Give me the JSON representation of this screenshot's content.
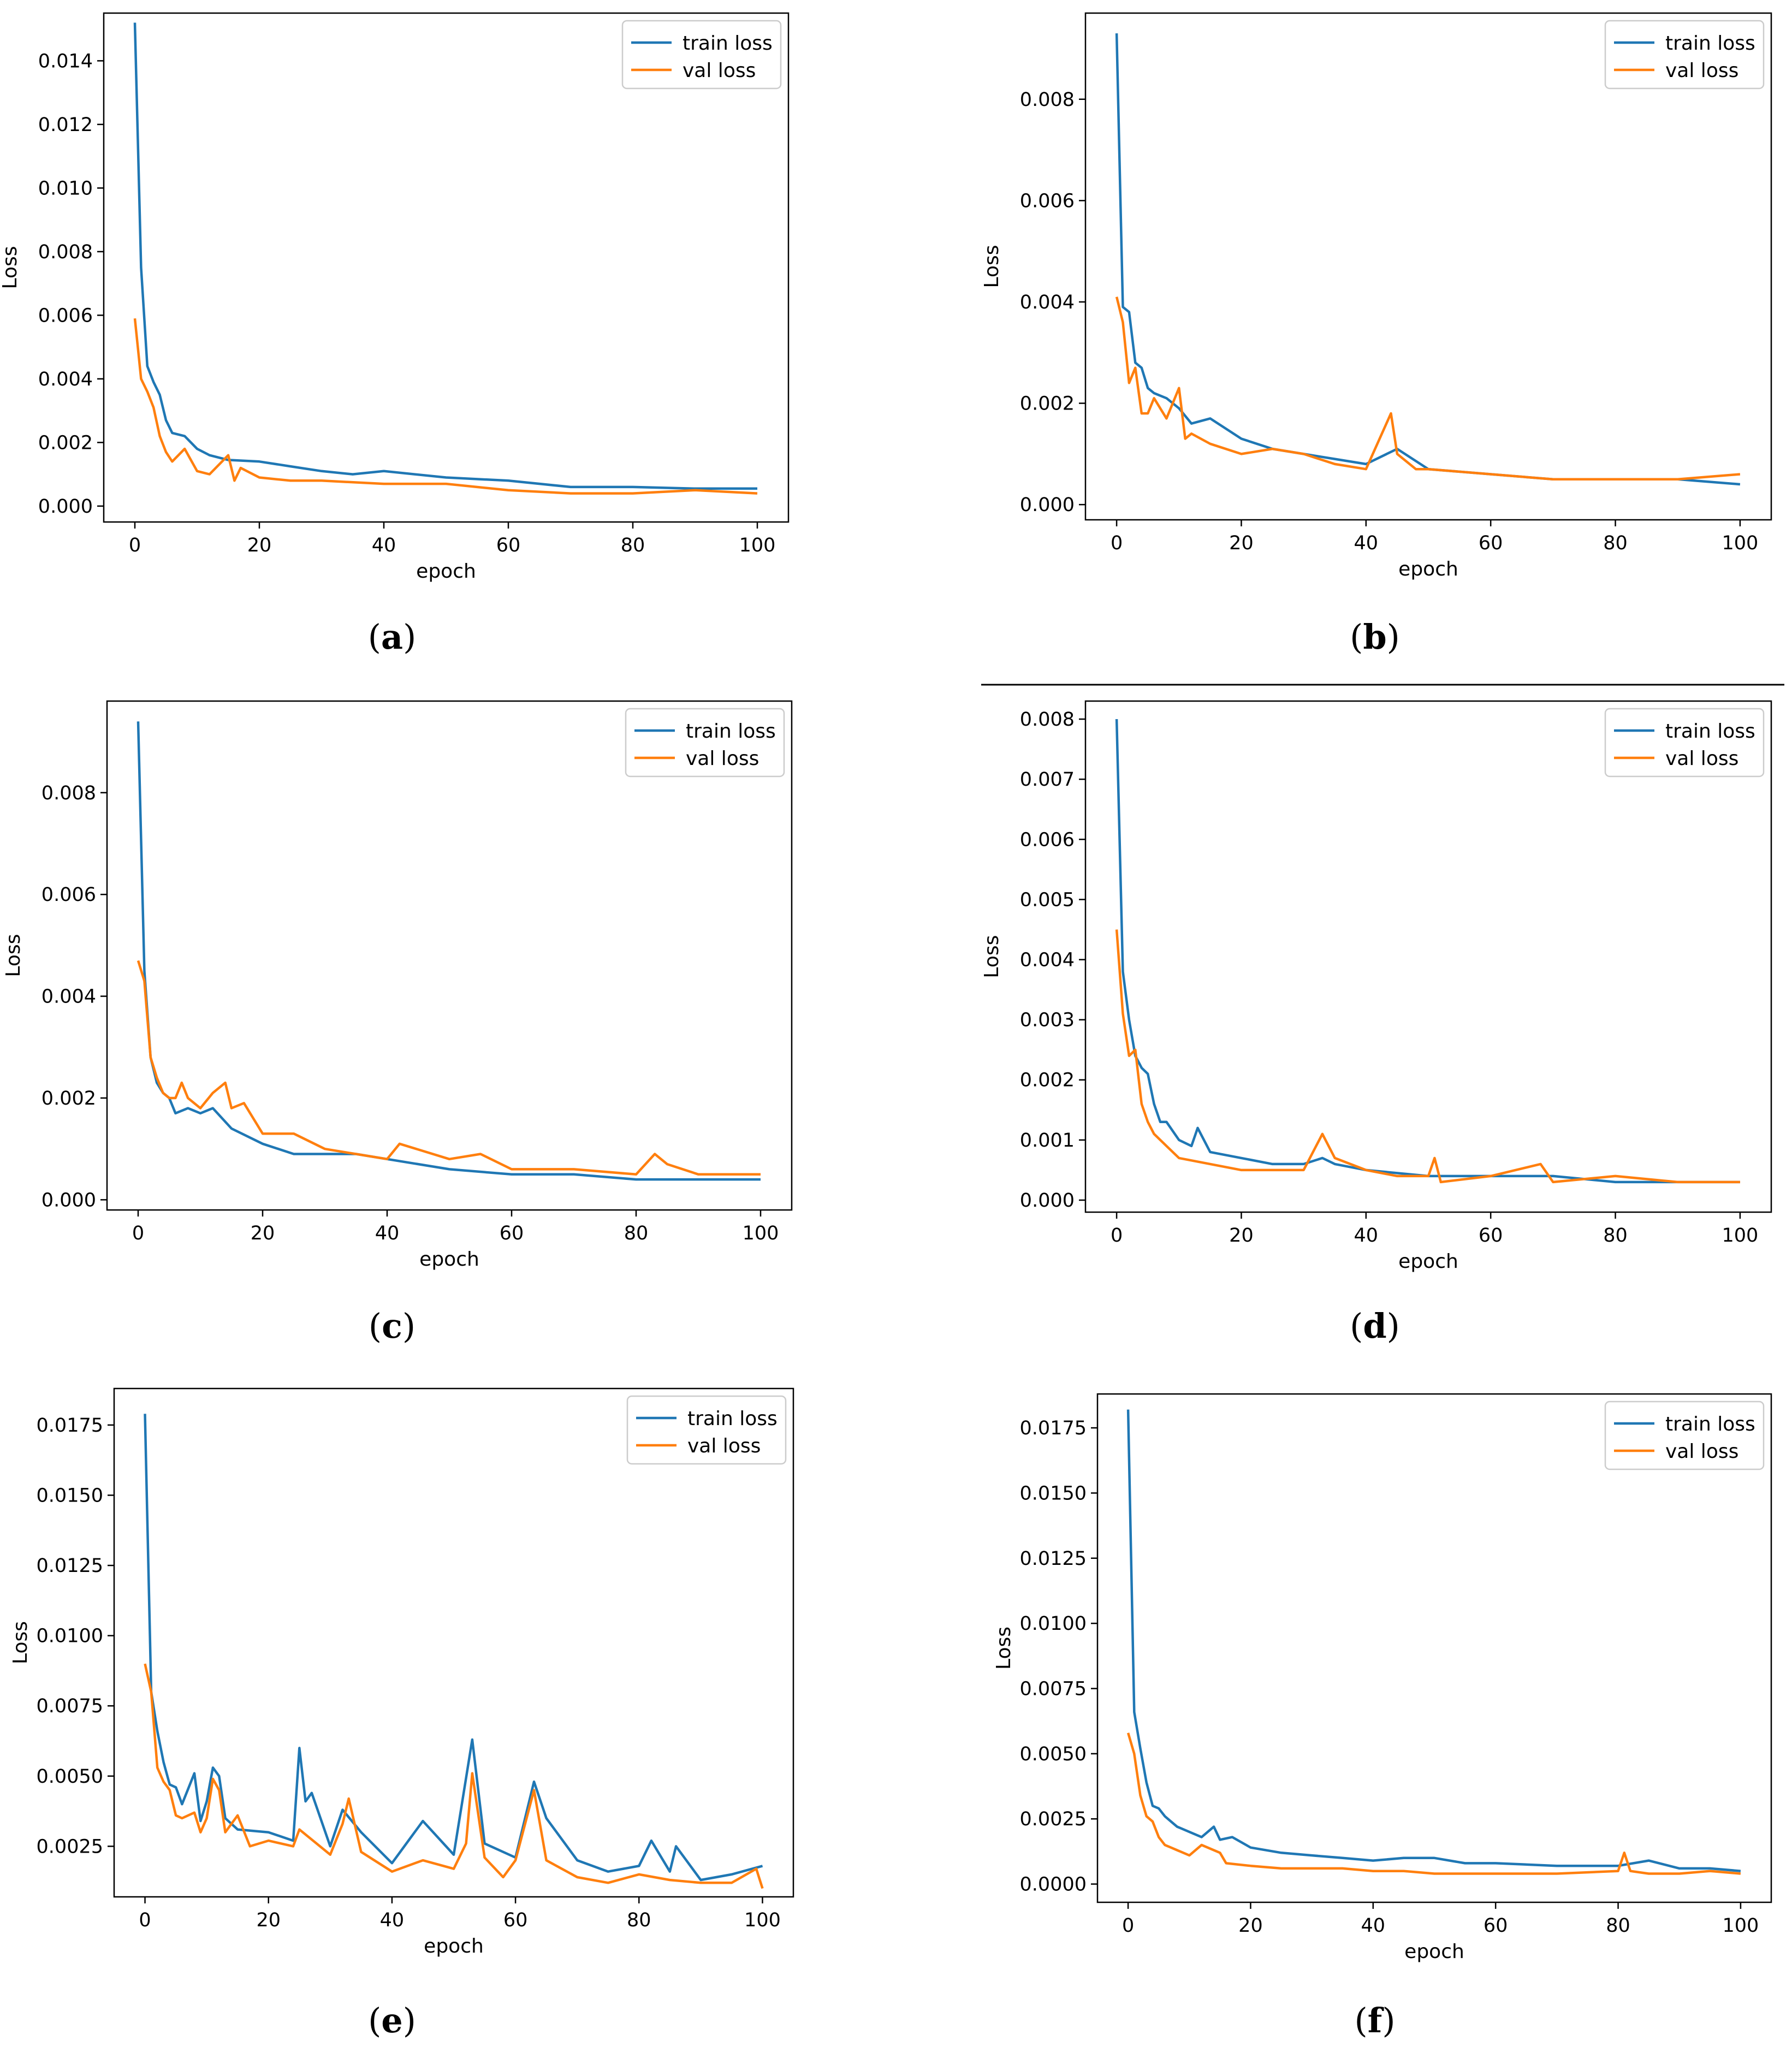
{
  "colors": {
    "train": "#1f77b4",
    "val": "#ff7f0e"
  },
  "chart_data": [
    {
      "id": "a",
      "type": "line",
      "caption_letter": "a",
      "xlabel": "epoch",
      "ylabel": "Loss",
      "xlim": [
        -5,
        105
      ],
      "ylim": [
        -0.0005,
        0.0155
      ],
      "xticks": [
        0,
        20,
        40,
        60,
        80,
        100
      ],
      "xtick_labels": [
        "0",
        "20",
        "40",
        "60",
        "80",
        "100"
      ],
      "yticks": [
        0,
        0.002,
        0.004,
        0.006,
        0.008,
        0.01,
        0.012,
        0.014
      ],
      "ytick_labels": [
        "0.000",
        "0.002",
        "0.004",
        "0.006",
        "0.008",
        "0.010",
        "0.012",
        "0.014"
      ],
      "legend": [
        "train loss",
        "val loss"
      ],
      "legend_position": "upper right",
      "series": [
        {
          "name": "train loss",
          "x": [
            0,
            1,
            2,
            3,
            4,
            5,
            6,
            8,
            10,
            12,
            15,
            20,
            25,
            30,
            35,
            40,
            50,
            60,
            70,
            80,
            90,
            100
          ],
          "values": [
            0.0152,
            0.0075,
            0.0044,
            0.0039,
            0.0035,
            0.0027,
            0.0023,
            0.0022,
            0.0018,
            0.0016,
            0.00145,
            0.0014,
            0.00125,
            0.0011,
            0.001,
            0.0011,
            0.0009,
            0.0008,
            0.0006,
            0.0006,
            0.00055,
            0.00055
          ]
        },
        {
          "name": "val loss",
          "x": [
            0,
            1,
            2,
            3,
            4,
            5,
            6,
            8,
            10,
            12,
            15,
            16,
            17,
            20,
            25,
            30,
            40,
            50,
            60,
            70,
            80,
            90,
            100
          ],
          "values": [
            0.0059,
            0.004,
            0.0036,
            0.0031,
            0.0022,
            0.0017,
            0.0014,
            0.0018,
            0.0011,
            0.001,
            0.0016,
            0.0008,
            0.0012,
            0.0009,
            0.0008,
            0.0008,
            0.0007,
            0.0007,
            0.0005,
            0.0004,
            0.0004,
            0.0005,
            0.0004
          ]
        }
      ]
    },
    {
      "id": "b",
      "type": "line",
      "caption_letter": "b",
      "xlabel": "epoch",
      "ylabel": "Loss",
      "xlim": [
        -5,
        105
      ],
      "ylim": [
        -0.0003,
        0.0097
      ],
      "xticks": [
        0,
        20,
        40,
        60,
        80,
        100
      ],
      "xtick_labels": [
        "0",
        "20",
        "40",
        "60",
        "80",
        "100"
      ],
      "yticks": [
        0,
        0.002,
        0.004,
        0.006,
        0.008
      ],
      "ytick_labels": [
        "0.000",
        "0.002",
        "0.004",
        "0.006",
        "0.008"
      ],
      "legend": [
        "train loss",
        "val loss"
      ],
      "legend_position": "upper right",
      "series": [
        {
          "name": "train loss",
          "x": [
            0,
            1,
            2,
            3,
            4,
            5,
            6,
            8,
            10,
            12,
            15,
            20,
            25,
            30,
            35,
            40,
            45,
            50,
            60,
            70,
            80,
            90,
            100
          ],
          "values": [
            0.0093,
            0.0039,
            0.0038,
            0.0028,
            0.0027,
            0.0023,
            0.0022,
            0.0021,
            0.0019,
            0.0016,
            0.0017,
            0.0013,
            0.0011,
            0.001,
            0.0009,
            0.0008,
            0.0011,
            0.0007,
            0.0006,
            0.0005,
            0.0005,
            0.0005,
            0.0004
          ]
        },
        {
          "name": "val loss",
          "x": [
            0,
            1,
            2,
            3,
            4,
            5,
            6,
            8,
            10,
            11,
            12,
            15,
            20,
            25,
            30,
            35,
            40,
            44,
            45,
            48,
            50,
            60,
            70,
            80,
            90,
            100
          ],
          "values": [
            0.0041,
            0.0036,
            0.0024,
            0.0027,
            0.0018,
            0.0018,
            0.0021,
            0.0017,
            0.0023,
            0.0013,
            0.0014,
            0.0012,
            0.001,
            0.0011,
            0.001,
            0.0008,
            0.0007,
            0.0018,
            0.001,
            0.0007,
            0.0007,
            0.0006,
            0.0005,
            0.0005,
            0.0005,
            0.0006
          ]
        }
      ]
    },
    {
      "id": "c",
      "type": "line",
      "caption_letter": "c",
      "xlabel": "epoch",
      "ylabel": "Loss",
      "xlim": [
        -5,
        105
      ],
      "ylim": [
        -0.0002,
        0.0098
      ],
      "xticks": [
        0,
        20,
        40,
        60,
        80,
        100
      ],
      "xtick_labels": [
        "0",
        "20",
        "40",
        "60",
        "80",
        "100"
      ],
      "yticks": [
        0,
        0.002,
        0.004,
        0.006,
        0.008
      ],
      "ytick_labels": [
        "0.000",
        "0.002",
        "0.004",
        "0.006",
        "0.008"
      ],
      "legend": [
        "train loss",
        "val loss"
      ],
      "legend_position": "upper right",
      "series": [
        {
          "name": "train loss",
          "x": [
            0,
            1,
            2,
            3,
            4,
            5,
            6,
            8,
            10,
            12,
            15,
            20,
            25,
            30,
            35,
            40,
            50,
            60,
            70,
            80,
            90,
            100
          ],
          "values": [
            0.0094,
            0.0045,
            0.0028,
            0.0023,
            0.0021,
            0.002,
            0.0017,
            0.0018,
            0.0017,
            0.0018,
            0.0014,
            0.0011,
            0.0009,
            0.0009,
            0.0009,
            0.0008,
            0.0006,
            0.0005,
            0.0005,
            0.0004,
            0.0004,
            0.0004
          ]
        },
        {
          "name": "val loss",
          "x": [
            0,
            1,
            2,
            3,
            4,
            5,
            6,
            7,
            8,
            10,
            12,
            14,
            15,
            17,
            20,
            25,
            30,
            35,
            40,
            42,
            50,
            55,
            60,
            70,
            80,
            83,
            85,
            90,
            100
          ],
          "values": [
            0.0047,
            0.0043,
            0.0028,
            0.0024,
            0.0021,
            0.002,
            0.002,
            0.0023,
            0.002,
            0.0018,
            0.0021,
            0.0023,
            0.0018,
            0.0019,
            0.0013,
            0.0013,
            0.001,
            0.0009,
            0.0008,
            0.0011,
            0.0008,
            0.0009,
            0.0006,
            0.0006,
            0.0005,
            0.0009,
            0.0007,
            0.0005,
            0.0005
          ]
        }
      ]
    },
    {
      "id": "d",
      "type": "line",
      "caption_letter": "d",
      "xlabel": "epoch",
      "ylabel": "Loss",
      "xlim": [
        -5,
        105
      ],
      "ylim": [
        -0.0002,
        0.0083
      ],
      "xticks": [
        0,
        20,
        40,
        60,
        80,
        100
      ],
      "xtick_labels": [
        "0",
        "20",
        "40",
        "60",
        "80",
        "100"
      ],
      "yticks": [
        0,
        0.001,
        0.002,
        0.003,
        0.004,
        0.005,
        0.006,
        0.007,
        0.008
      ],
      "ytick_labels": [
        "0.000",
        "0.001",
        "0.002",
        "0.003",
        "0.004",
        "0.005",
        "0.006",
        "0.007",
        "0.008"
      ],
      "legend": [
        "train loss",
        "val loss"
      ],
      "legend_position": "upper right",
      "series": [
        {
          "name": "train loss",
          "x": [
            0,
            1,
            2,
            3,
            4,
            5,
            6,
            7,
            8,
            10,
            12,
            13,
            15,
            20,
            25,
            30,
            33,
            35,
            40,
            50,
            60,
            70,
            80,
            90,
            100
          ],
          "values": [
            0.008,
            0.0038,
            0.003,
            0.0024,
            0.0022,
            0.0021,
            0.0016,
            0.0013,
            0.0013,
            0.001,
            0.0009,
            0.0012,
            0.0008,
            0.0007,
            0.0006,
            0.0006,
            0.0007,
            0.0006,
            0.0005,
            0.0004,
            0.0004,
            0.0004,
            0.0003,
            0.0003,
            0.0003
          ]
        },
        {
          "name": "val loss",
          "x": [
            0,
            1,
            2,
            3,
            4,
            5,
            6,
            8,
            10,
            15,
            20,
            25,
            30,
            33,
            35,
            40,
            45,
            50,
            51,
            52,
            60,
            68,
            70,
            80,
            90,
            100
          ],
          "values": [
            0.0045,
            0.0031,
            0.0024,
            0.0025,
            0.0016,
            0.0013,
            0.0011,
            0.0009,
            0.0007,
            0.0006,
            0.0005,
            0.0005,
            0.0005,
            0.0011,
            0.0007,
            0.0005,
            0.0004,
            0.0004,
            0.0007,
            0.0003,
            0.0004,
            0.0006,
            0.0003,
            0.0004,
            0.0003,
            0.0003
          ]
        }
      ]
    },
    {
      "id": "e",
      "type": "line",
      "caption_letter": "e",
      "xlabel": "epoch",
      "ylabel": "Loss",
      "xlim": [
        -5,
        105
      ],
      "ylim": [
        0.0007,
        0.0188
      ],
      "xticks": [
        0,
        20,
        40,
        60,
        80,
        100
      ],
      "xtick_labels": [
        "0",
        "20",
        "40",
        "60",
        "80",
        "100"
      ],
      "yticks": [
        0.0025,
        0.005,
        0.0075,
        0.01,
        0.0125,
        0.015,
        0.0175
      ],
      "ytick_labels": [
        "0.0025",
        "0.0050",
        "0.0075",
        "0.0100",
        "0.0125",
        "0.0150",
        "0.0175"
      ],
      "legend": [
        "train loss",
        "val loss"
      ],
      "legend_position": "upper right",
      "series": [
        {
          "name": "train loss",
          "x": [
            0,
            1,
            2,
            3,
            4,
            5,
            6,
            8,
            9,
            10,
            11,
            12,
            13,
            15,
            20,
            24,
            25,
            26,
            27,
            30,
            32,
            35,
            40,
            43,
            45,
            50,
            53,
            55,
            60,
            63,
            65,
            70,
            75,
            80,
            82,
            85,
            86,
            90,
            95,
            100
          ],
          "values": [
            0.0179,
            0.008,
            0.0066,
            0.0055,
            0.0047,
            0.0046,
            0.004,
            0.0051,
            0.0034,
            0.0041,
            0.0053,
            0.005,
            0.0035,
            0.0031,
            0.003,
            0.0027,
            0.006,
            0.0041,
            0.0044,
            0.0025,
            0.0038,
            0.003,
            0.0019,
            0.0028,
            0.0034,
            0.0022,
            0.0063,
            0.0026,
            0.0021,
            0.0048,
            0.0035,
            0.002,
            0.0016,
            0.0018,
            0.0027,
            0.0016,
            0.0025,
            0.0013,
            0.0015,
            0.0018
          ]
        },
        {
          "name": "val loss",
          "x": [
            0,
            1,
            2,
            3,
            4,
            5,
            6,
            8,
            9,
            10,
            11,
            12,
            13,
            15,
            17,
            20,
            24,
            25,
            30,
            32,
            33,
            35,
            40,
            45,
            50,
            52,
            53,
            55,
            58,
            60,
            63,
            65,
            70,
            75,
            80,
            85,
            90,
            95,
            99,
            100
          ],
          "values": [
            0.009,
            0.008,
            0.0053,
            0.0048,
            0.0045,
            0.0036,
            0.0035,
            0.0037,
            0.003,
            0.0035,
            0.0049,
            0.0045,
            0.003,
            0.0036,
            0.0025,
            0.0027,
            0.0025,
            0.0031,
            0.0022,
            0.0033,
            0.0042,
            0.0023,
            0.0016,
            0.002,
            0.0017,
            0.0026,
            0.0051,
            0.0021,
            0.0014,
            0.002,
            0.0045,
            0.002,
            0.0014,
            0.0012,
            0.0015,
            0.0013,
            0.0012,
            0.0012,
            0.0017,
            0.001
          ]
        }
      ]
    },
    {
      "id": "f",
      "type": "line",
      "caption_letter": "f",
      "xlabel": "epoch",
      "ylabel": "Loss",
      "xlim": [
        -5,
        105
      ],
      "ylim": [
        -0.0007,
        0.0188
      ],
      "xticks": [
        0,
        20,
        40,
        60,
        80,
        100
      ],
      "xtick_labels": [
        "0",
        "20",
        "40",
        "60",
        "80",
        "100"
      ],
      "yticks": [
        0,
        0.0025,
        0.005,
        0.0075,
        0.01,
        0.0125,
        0.015,
        0.0175
      ],
      "ytick_labels": [
        "0.0000",
        "0.0025",
        "0.0050",
        "0.0075",
        "0.0100",
        "0.0125",
        "0.0150",
        "0.0175"
      ],
      "legend": [
        "train loss",
        "val loss"
      ],
      "legend_position": "upper right",
      "series": [
        {
          "name": "train loss",
          "x": [
            0,
            1,
            2,
            3,
            4,
            5,
            6,
            7,
            8,
            10,
            12,
            14,
            15,
            17,
            20,
            25,
            30,
            35,
            40,
            45,
            50,
            55,
            60,
            70,
            80,
            85,
            90,
            95,
            100
          ],
          "values": [
            0.0182,
            0.0066,
            0.0052,
            0.0039,
            0.003,
            0.0029,
            0.0026,
            0.0024,
            0.0022,
            0.002,
            0.0018,
            0.0022,
            0.0017,
            0.0018,
            0.0014,
            0.0012,
            0.0011,
            0.001,
            0.0009,
            0.001,
            0.001,
            0.0008,
            0.0008,
            0.0007,
            0.0007,
            0.0009,
            0.0006,
            0.0006,
            0.0005
          ]
        },
        {
          "name": "val loss",
          "x": [
            0,
            1,
            2,
            3,
            4,
            5,
            6,
            7,
            8,
            10,
            12,
            15,
            16,
            20,
            25,
            30,
            35,
            40,
            45,
            50,
            60,
            70,
            80,
            81,
            82,
            85,
            90,
            95,
            100
          ],
          "values": [
            0.0058,
            0.005,
            0.0034,
            0.0026,
            0.0024,
            0.0018,
            0.0015,
            0.0014,
            0.0013,
            0.0011,
            0.0015,
            0.0012,
            0.0008,
            0.0007,
            0.0006,
            0.0006,
            0.0006,
            0.0005,
            0.0005,
            0.0004,
            0.0004,
            0.0004,
            0.0005,
            0.0012,
            0.0005,
            0.0004,
            0.0004,
            0.0005,
            0.0004
          ]
        }
      ]
    }
  ]
}
